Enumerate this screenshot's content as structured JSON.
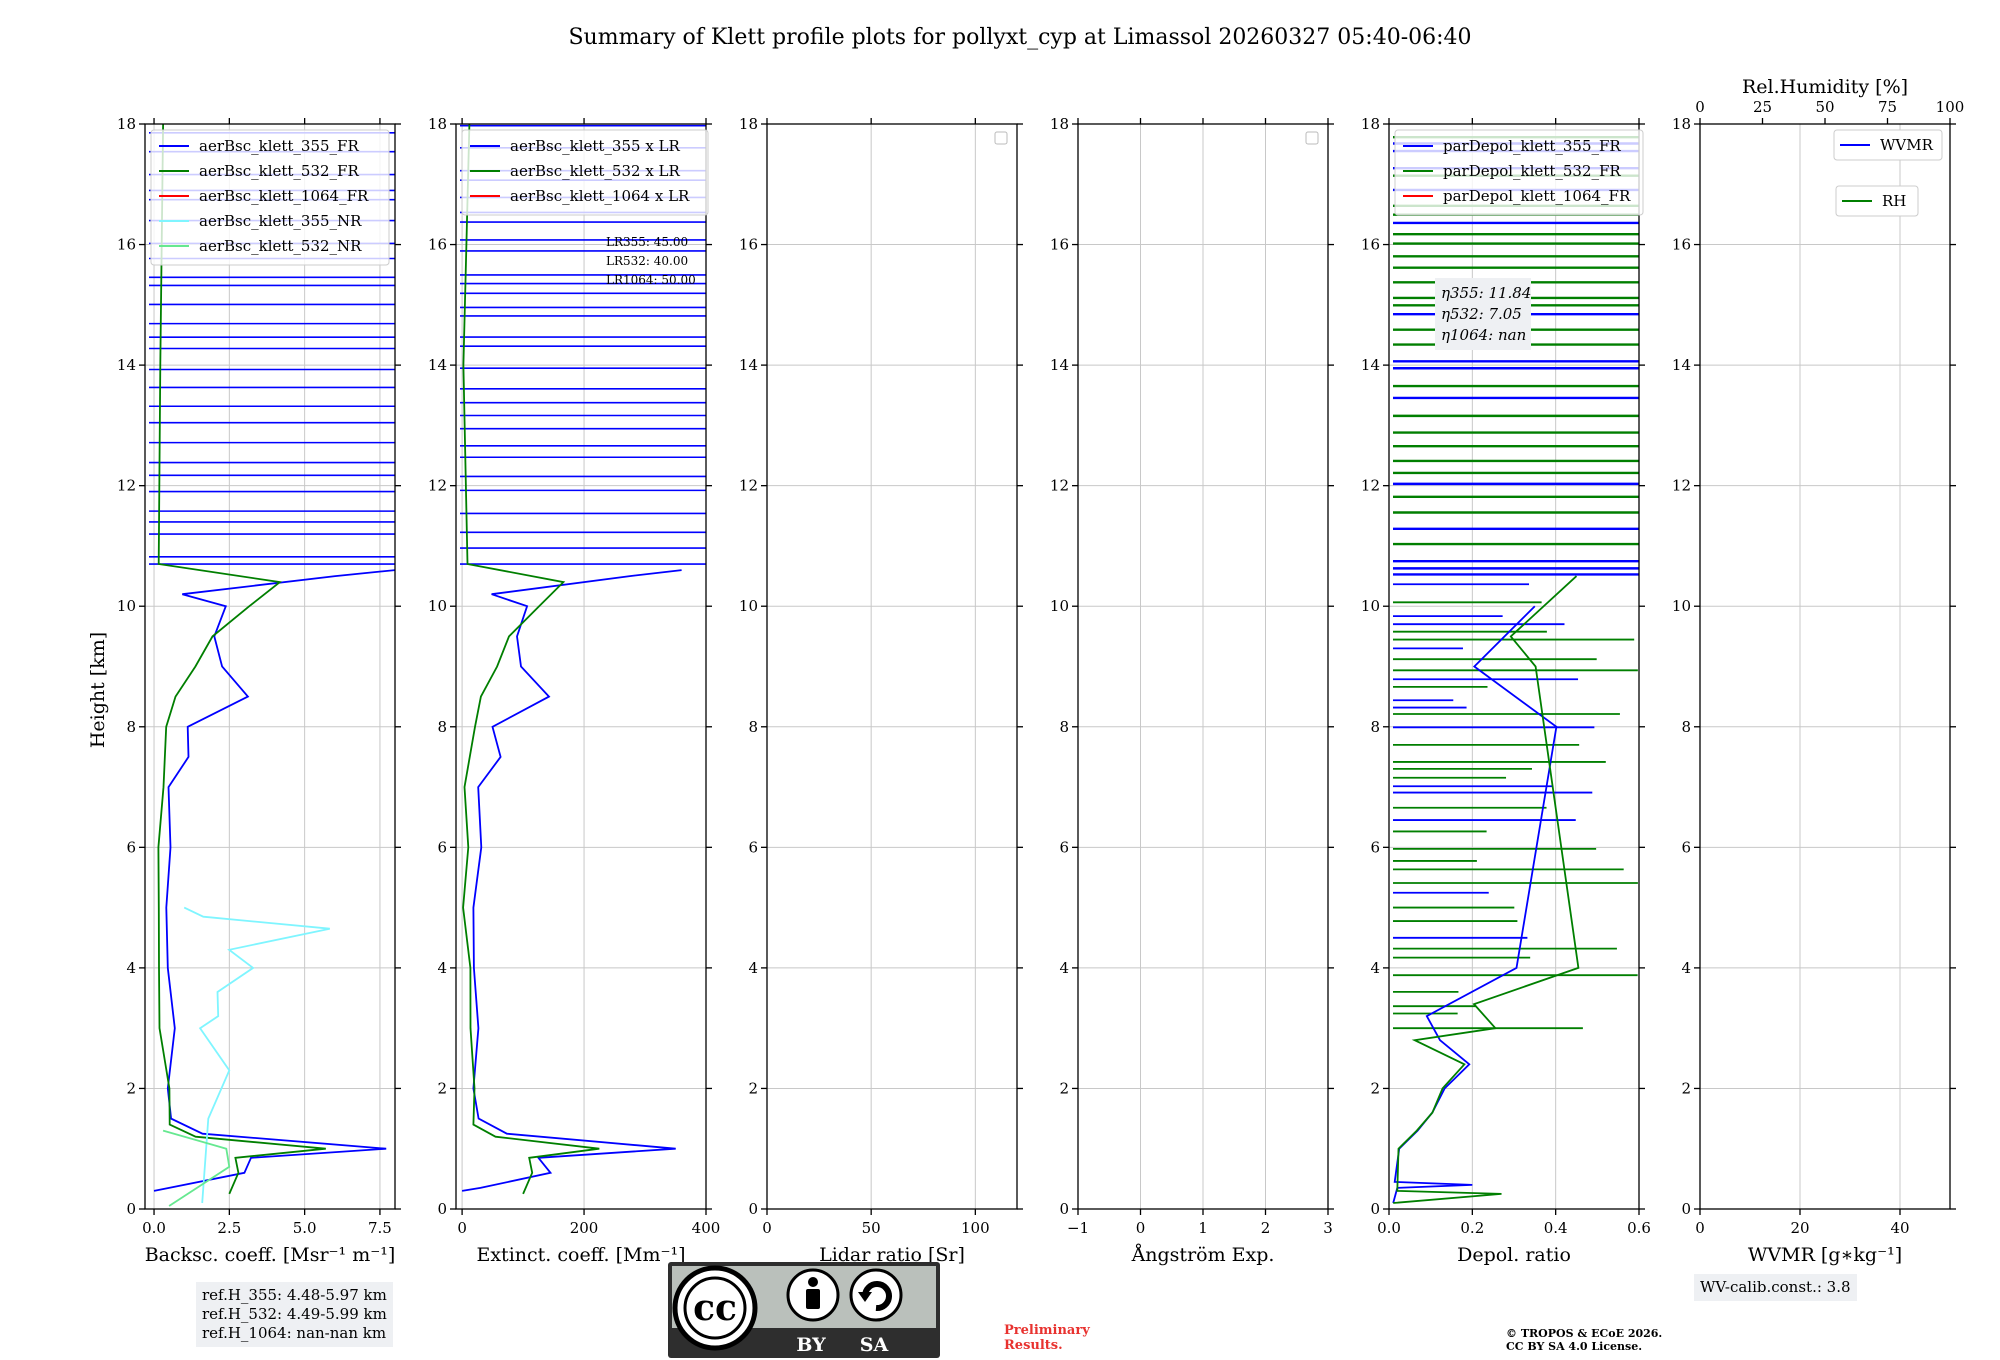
{
  "title": "Summary of Klett profile plots for pollyxt_cyp at Limassol 20260327 05:40-06:40",
  "y_axis_label": "Height [km]",
  "colors": {
    "c355": "#0000ff",
    "c532": "#007f00",
    "c1064": "#ff0000",
    "c355nr": "#7ff5ff",
    "c532nr": "#66e890",
    "prelim": "#e8322f"
  },
  "chart_data": [
    {
      "type": "line",
      "name": "backscatter",
      "xlabel": "Backsc. coeff. [Msr⁻¹ m⁻¹]",
      "xlim": [
        -0.3,
        8
      ],
      "xticks": [
        0,
        2.5,
        5,
        7.5
      ],
      "xtick_labels": [
        "0.0",
        "2.5",
        "5.0",
        "7.5"
      ],
      "ylim": [
        0,
        18
      ],
      "yticks": [
        0,
        2,
        4,
        6,
        8,
        10,
        12,
        14,
        16,
        18
      ],
      "grid": true,
      "legend": [
        "aerBsc_klett_355_FR",
        "aerBsc_klett_532_FR",
        "aerBsc_klett_1064_FR",
        "aerBsc_klett_355_NR",
        "aerBsc_klett_532_NR"
      ],
      "legend_location": "top-left",
      "series": [
        {
          "name": "aerBsc_klett_355_FR",
          "x": [
            0,
            0.5,
            3,
            3.2,
            7.6,
            1.5,
            0.6,
            0.5,
            0.6,
            0.5,
            0.5,
            0.6,
            0.5,
            1.2,
            1.0,
            3.1,
            2.2,
            1.9,
            2.5,
            1.0,
            6.0,
            8.0
          ],
          "y": [
            0.3,
            0.35,
            0.6,
            0.85,
            1.0,
            1.25,
            1.5,
            2.0,
            3.0,
            4.0,
            5.0,
            6.0,
            7.0,
            7.5,
            8.0,
            8.5,
            9.0,
            9.5,
            10.0,
            10.2,
            10.5,
            10.6
          ]
        },
        {
          "name": "aerBsc_klett_532_FR",
          "x": [
            2.5,
            2.8,
            2.7,
            5.7,
            1.4,
            0.6,
            0.4,
            0.3,
            0.2,
            0.2,
            0.1,
            0.2,
            0.4,
            0.8,
            1.4,
            2.0,
            3.2,
            4.2,
            0.2,
            0.2,
            0.3
          ],
          "y": [
            0.25,
            0.6,
            0.85,
            1.0,
            1.2,
            1.4,
            2.0,
            3.0,
            4.0,
            5.0,
            6.0,
            7.0,
            8.0,
            8.5,
            9.0,
            9.5,
            10.0,
            10.4,
            10.7,
            14.0,
            18.0
          ]
        },
        {
          "name": "aerBsc_klett_355_NR",
          "x": [
            1.6,
            1.8,
            2.5,
            1.5,
            2.2,
            2.0,
            3.3,
            2.4,
            5.8,
            1.6,
            1.0
          ],
          "y": [
            0.1,
            1.5,
            2.3,
            3.0,
            3.2,
            3.6,
            4.0,
            4.3,
            4.65,
            4.85,
            5.0
          ]
        },
        {
          "name": "aerBsc_klett_532_NR",
          "x": [
            0.5,
            2.5,
            2.4,
            0.3
          ],
          "y": [
            0.05,
            0.7,
            1.0,
            1.3
          ]
        }
      ],
      "annotation": [
        "ref.H_355: 4.48-5.97 km",
        "ref.H_532: 4.49-5.99 km",
        "ref.H_1064: nan-nan km"
      ]
    },
    {
      "type": "line",
      "name": "extinction",
      "xlabel": "Extinct. coeff. [Mm⁻¹]",
      "xlim": [
        -10,
        400
      ],
      "xticks": [
        0,
        200,
        400
      ],
      "xtick_labels": [
        "0",
        "200",
        "400"
      ],
      "ylim": [
        0,
        18
      ],
      "grid": true,
      "legend": [
        "aerBsc_klett_355 x LR",
        "aerBsc_klett_532 x LR",
        "aerBsc_klett_1064 x LR"
      ],
      "legend_location": "top-left",
      "lr_text": [
        "LR355: 45.00",
        "LR532: 40.00",
        "LR1064: 50.00"
      ],
      "series": [
        {
          "name": "aerBsc_klett_355 x LR",
          "x": [
            0,
            30,
            145,
            120,
            345,
            70,
            30,
            25,
            30,
            25,
            25,
            30,
            30,
            60,
            50,
            140,
            100,
            85,
            110,
            50,
            270,
            360
          ],
          "y": [
            0.3,
            0.35,
            0.6,
            0.85,
            1.0,
            1.25,
            1.5,
            2.0,
            3.0,
            4.0,
            5.0,
            6.0,
            7.0,
            7.5,
            8.0,
            8.5,
            9.0,
            9.5,
            10.0,
            10.2,
            10.5,
            10.6
          ]
        },
        {
          "name": "aerBsc_klett_532 x LR",
          "x": [
            100,
            115,
            110,
            230,
            55,
            25,
            15,
            12,
            8,
            8,
            5,
            8,
            15,
            30,
            55,
            80,
            130,
            170,
            8,
            8,
            12
          ],
          "y": [
            0.25,
            0.6,
            0.85,
            1.0,
            1.2,
            1.4,
            2.0,
            3.0,
            4.0,
            5.0,
            6.0,
            7.0,
            8.0,
            8.5,
            9.0,
            9.5,
            10.0,
            10.4,
            10.7,
            14.0,
            18.0
          ]
        }
      ]
    },
    {
      "type": "line",
      "name": "lidar_ratio",
      "xlabel": "Lidar ratio [Sr]",
      "xlim": [
        0,
        120
      ],
      "xticks": [
        0,
        50,
        100
      ],
      "xtick_labels": [
        "0",
        "50",
        "100"
      ],
      "ylim": [
        0,
        18
      ],
      "grid": true,
      "series": []
    },
    {
      "type": "line",
      "name": "angstrom",
      "xlabel": "Ångström Exp.",
      "xlim": [
        -1,
        3
      ],
      "xticks": [
        -1,
        0,
        1,
        2,
        3
      ],
      "xtick_labels": [
        "−1",
        "0",
        "1",
        "2",
        "3"
      ],
      "ylim": [
        0,
        18
      ],
      "grid": true,
      "series": []
    },
    {
      "type": "line",
      "name": "depol",
      "xlabel": "Depol. ratio",
      "xlim": [
        0,
        0.6
      ],
      "xticks": [
        0,
        0.2,
        0.4,
        0.6
      ],
      "xtick_labels": [
        "0.0",
        "0.2",
        "0.4",
        "0.6"
      ],
      "ylim": [
        0,
        18
      ],
      "grid": true,
      "legend": [
        "parDepol_klett_355_FR",
        "parDepol_klett_532_FR",
        "parDepol_klett_1064_FR"
      ],
      "legend_location": "top-left",
      "eta_text": [
        "η355: 11.84",
        "η532: 7.05",
        "η1064: nan"
      ],
      "series": [
        {
          "name": "parDepol_klett_355_FR",
          "x": [
            0.01,
            0.02,
            0.2,
            0.02,
            0.03,
            0.06,
            0.1,
            0.14,
            0.2,
            0.12,
            0.1,
            0.3,
            0.4,
            0.2,
            0.35
          ],
          "y": [
            0.1,
            0.35,
            0.4,
            0.45,
            1.0,
            1.3,
            1.6,
            2.0,
            2.4,
            2.8,
            3.2,
            4.0,
            8.0,
            9.0,
            10.0
          ]
        },
        {
          "name": "parDepol_klett_532_FR",
          "x": [
            0.01,
            0.27,
            0.02,
            0.03,
            0.07,
            0.1,
            0.12,
            0.18,
            0.06,
            0.25,
            0.2,
            0.45,
            0.35,
            0.3,
            0.45
          ],
          "y": [
            0.1,
            0.25,
            0.3,
            1.0,
            1.3,
            1.6,
            2.0,
            2.4,
            2.8,
            3.0,
            3.4,
            4.0,
            9.0,
            9.5,
            10.5
          ]
        }
      ]
    },
    {
      "type": "line",
      "name": "wvmr",
      "xlabel": "WVMR [g∗kg⁻¹]",
      "xlim": [
        0,
        50
      ],
      "xticks": [
        0,
        20,
        40
      ],
      "xtick_labels": [
        "0",
        "20",
        "40"
      ],
      "top_xlabel": "Rel.Humidity [%]",
      "top_xlim": [
        0,
        100
      ],
      "top_xticks": [
        0,
        25,
        50,
        75,
        100
      ],
      "top_xtick_labels": [
        "0",
        "25",
        "50",
        "75",
        "100"
      ],
      "ylim": [
        0,
        18
      ],
      "grid": true,
      "legend": [
        "WVMR",
        "RH"
      ],
      "legend_location": "top-right",
      "annotation": "WV-calib.const.: 3.8",
      "series": []
    }
  ],
  "badge": {
    "symbol": "cc",
    "by": "BY",
    "sa": "SA"
  },
  "preliminary": [
    "Preliminary",
    "Results."
  ],
  "copyright": [
    "© TROPOS & ECoE 2026.",
    "CC BY SA 4.0 License."
  ]
}
